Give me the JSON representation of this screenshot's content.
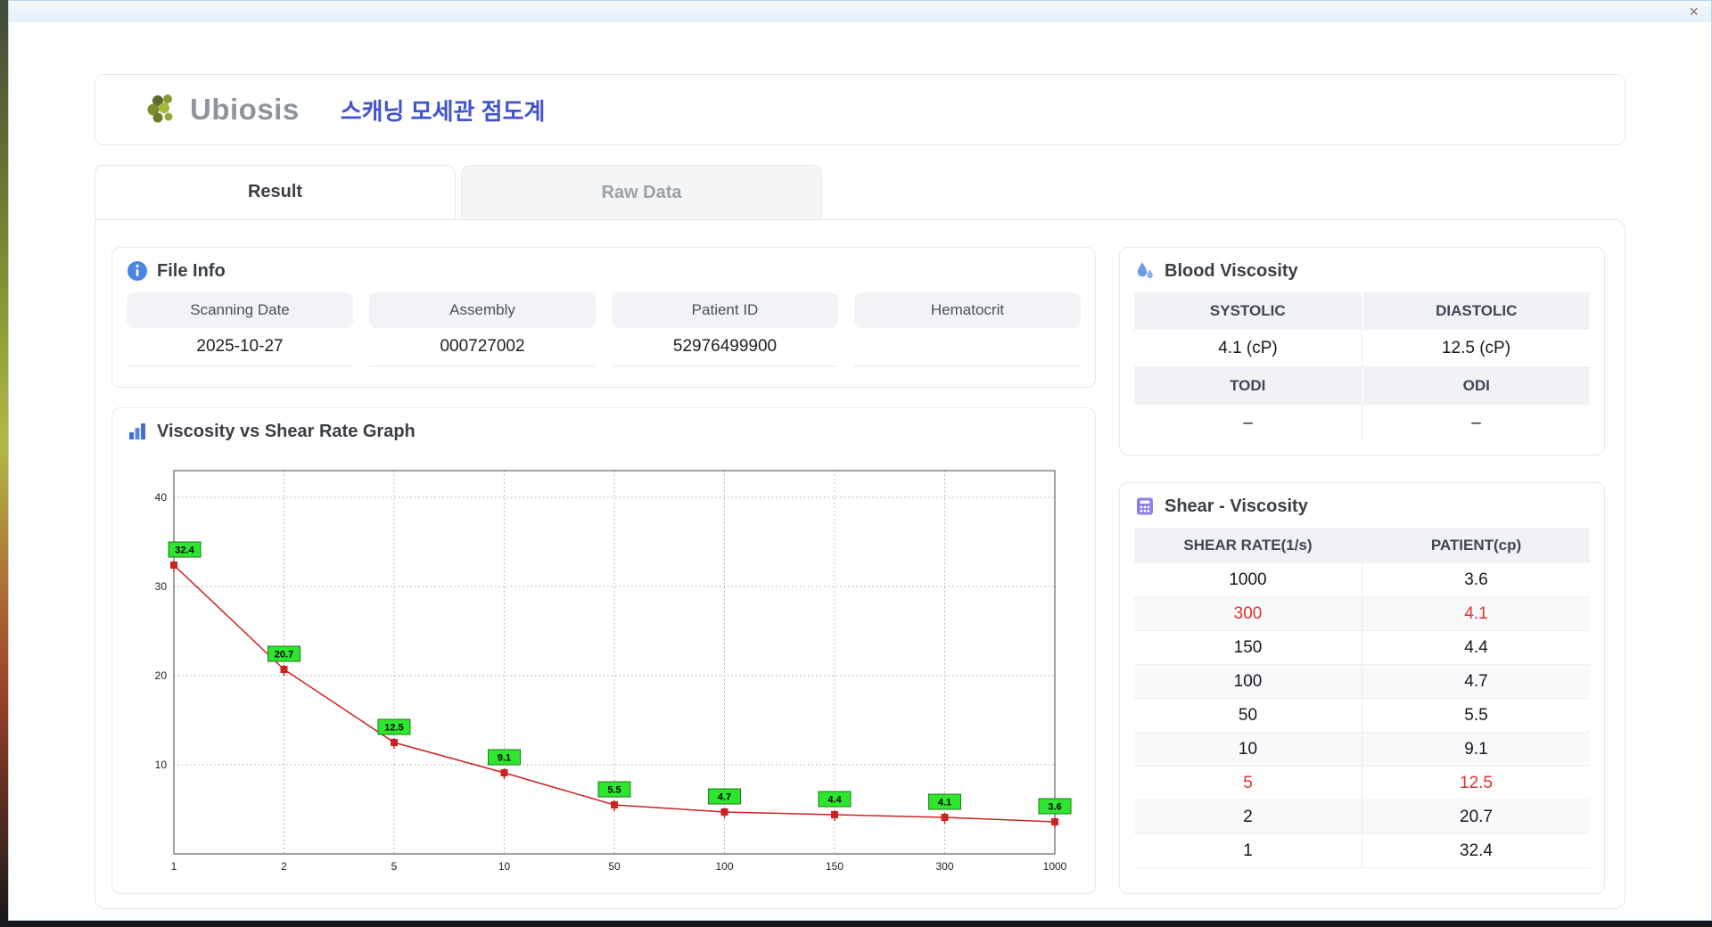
{
  "window": {
    "close_label": "×"
  },
  "header": {
    "logo_text": "Ubiosis",
    "title": "스캐닝 모세관 점도계"
  },
  "tabs": [
    {
      "label": "Result",
      "active": true
    },
    {
      "label": "Raw Data",
      "active": false
    }
  ],
  "file_info": {
    "title": "File Info",
    "fields": [
      {
        "label": "Scanning Date",
        "value": "2025-10-27"
      },
      {
        "label": "Assembly",
        "value": "000727002"
      },
      {
        "label": "Patient ID",
        "value": "52976499900"
      },
      {
        "label": "Hematocrit",
        "value": ""
      }
    ]
  },
  "blood_viscosity": {
    "title": "Blood Viscosity",
    "row1": {
      "headers": [
        "SYSTOLIC",
        "DIASTOLIC"
      ],
      "values": [
        "4.1 (cP)",
        "12.5 (cP)"
      ]
    },
    "row2": {
      "headers": [
        "TODI",
        "ODI"
      ],
      "values": [
        "–",
        "–"
      ]
    }
  },
  "graph": {
    "title": "Viscosity vs Shear Rate Graph"
  },
  "chart_data": {
    "type": "line",
    "title": "Viscosity vs Shear Rate Graph",
    "x": [
      1,
      2,
      5,
      10,
      50,
      100,
      150,
      300,
      1000
    ],
    "x_scale": "categorical",
    "series": [
      {
        "name": "PATIENT",
        "values": [
          32.4,
          20.7,
          12.5,
          9.1,
          5.5,
          4.7,
          4.4,
          4.1,
          3.6
        ]
      }
    ],
    "xlabel": "",
    "ylabel": "",
    "ylim": [
      0,
      43
    ],
    "yticks": [
      10,
      20,
      30,
      40
    ],
    "grid": true,
    "line_color": "#cc2222",
    "marker_color": "#cc2222",
    "label_bg": "#2ee62e",
    "label_border": "#1a7a1a"
  },
  "shear_table": {
    "title": "Shear - Viscosity",
    "columns": [
      "SHEAR RATE(1/s)",
      "PATIENT(cp)"
    ],
    "rows": [
      {
        "shear": "1000",
        "patient": "3.6",
        "highlight": false
      },
      {
        "shear": "300",
        "patient": "4.1",
        "highlight": true
      },
      {
        "shear": "150",
        "patient": "4.4",
        "highlight": false
      },
      {
        "shear": "100",
        "patient": "4.7",
        "highlight": false
      },
      {
        "shear": "50",
        "patient": "5.5",
        "highlight": false
      },
      {
        "shear": "10",
        "patient": "9.1",
        "highlight": false
      },
      {
        "shear": "5",
        "patient": "12.5",
        "highlight": true
      },
      {
        "shear": "2",
        "patient": "20.7",
        "highlight": false
      },
      {
        "shear": "1",
        "patient": "32.4",
        "highlight": false
      }
    ]
  },
  "colors": {
    "accent_blue": "#4353cc",
    "highlight_red": "#e03131",
    "line_red": "#cc2222",
    "label_green": "#2ee62e",
    "header_gray": "#f0f2f5"
  }
}
